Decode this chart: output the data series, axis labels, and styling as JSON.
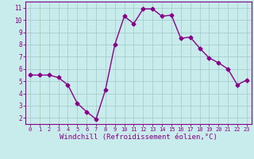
{
  "x": [
    0,
    1,
    2,
    3,
    4,
    5,
    6,
    7,
    8,
    9,
    10,
    11,
    12,
    13,
    14,
    15,
    16,
    17,
    18,
    19,
    20,
    21,
    22,
    23
  ],
  "y": [
    5.5,
    5.5,
    5.5,
    5.3,
    4.7,
    3.2,
    2.5,
    1.9,
    4.3,
    8.0,
    10.3,
    9.7,
    10.9,
    10.9,
    10.3,
    10.4,
    8.5,
    8.6,
    7.7,
    6.9,
    6.5,
    6.0,
    4.7,
    5.1
  ],
  "line_color": "#880088",
  "marker": "D",
  "marker_size": 2.5,
  "line_width": 1.0,
  "xlabel": "Windchill (Refroidissement éolien,°C)",
  "xlabel_fontsize": 6.5,
  "ylabel_ticks": [
    2,
    3,
    4,
    5,
    6,
    7,
    8,
    9,
    10,
    11
  ],
  "xtick_labels": [
    "0",
    "1",
    "2",
    "3",
    "4",
    "5",
    "6",
    "7",
    "8",
    "9",
    "10",
    "11",
    "12",
    "13",
    "14",
    "15",
    "16",
    "17",
    "18",
    "19",
    "20",
    "21",
    "22",
    "23"
  ],
  "ylim": [
    1.5,
    11.5
  ],
  "xlim": [
    -0.5,
    23.5
  ],
  "bg_color": "#c8ecec",
  "grid_color": "#a0c8c8",
  "tick_color": "#880088",
  "label_color": "#880088",
  "spine_color": "#880088",
  "xtick_fontsize": 5.0,
  "ytick_fontsize": 5.5
}
